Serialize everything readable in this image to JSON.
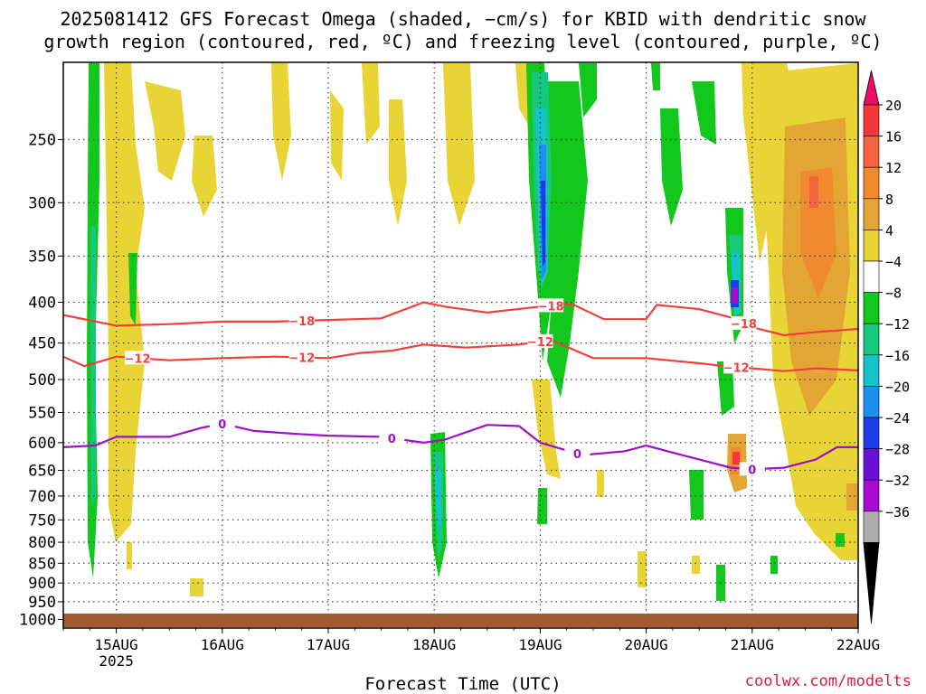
{
  "title_line1": "2025081412 GFS Forecast Omega (shaded, −cm/s) for KBID with dendritic snow",
  "title_line2": "growth region (contoured, red, ºC) and freezing level (contoured, purple, ºC)",
  "credit": "coolwx.com/modelts",
  "chart_data": {
    "type": "heatmap",
    "title": "2025081412 GFS Forecast Omega (shaded, −cm/s) for KBID with dendritic snow growth region (contoured, red, ºC) and freezing level (contoured, purple, ºC)",
    "xlabel": "Forecast Time (UTC)",
    "ylabel": "",
    "x_ticks": [
      "15AUG",
      "16AUG",
      "17AUG",
      "18AUG",
      "19AUG",
      "20AUG",
      "21AUG",
      "22AUG"
    ],
    "x_year_label": "2025",
    "xlim_days": [
      14.5,
      22.0
    ],
    "y_ticks": [
      250,
      300,
      350,
      400,
      450,
      500,
      550,
      600,
      650,
      700,
      750,
      800,
      850,
      900,
      950,
      1000
    ],
    "y_scale": "log-pressure",
    "ylim_hpa": [
      1025,
      200
    ],
    "grid": true,
    "colorbar": {
      "labels": [
        "20",
        "16",
        "12",
        "8",
        "4",
        "−4",
        "−8",
        "−12",
        "−16",
        "−20",
        "−24",
        "−28",
        "−32",
        "−36"
      ],
      "colors": [
        "#ee0a6b",
        "#f5393a",
        "#f4643f",
        "#f08a2e",
        "#e3a634",
        "#e8d434",
        "#ffffff",
        "#12c81c",
        "#16c87e",
        "#14c4c8",
        "#1e8ef0",
        "#1c3de8",
        "#6a10d6",
        "#a90ad2",
        "#aeaeae",
        "#000000"
      ]
    },
    "contours": [
      {
        "label": "−18",
        "color": "#f0403a",
        "pressure_level_hpa_by_day": [
          [
            14.5,
            415
          ],
          [
            15.0,
            428
          ],
          [
            15.5,
            426
          ],
          [
            16.0,
            423
          ],
          [
            16.5,
            423
          ],
          [
            17.0,
            421
          ],
          [
            17.5,
            419
          ],
          [
            17.9,
            400
          ],
          [
            18.1,
            405
          ],
          [
            18.5,
            412
          ],
          [
            19.0,
            405
          ],
          [
            19.3,
            402
          ],
          [
            19.6,
            420
          ],
          [
            20.0,
            420
          ],
          [
            20.1,
            403
          ],
          [
            20.5,
            408
          ],
          [
            20.8,
            418
          ],
          [
            21.0,
            430
          ],
          [
            21.3,
            440
          ],
          [
            21.6,
            436
          ],
          [
            22.0,
            432
          ]
        ]
      },
      {
        "label": "−12",
        "color": "#f0403a",
        "pressure_level_hpa_by_day": [
          [
            14.5,
            468
          ],
          [
            14.7,
            481
          ],
          [
            15.0,
            468
          ],
          [
            15.5,
            473
          ],
          [
            16.0,
            470
          ],
          [
            16.5,
            468
          ],
          [
            17.0,
            470
          ],
          [
            17.3,
            463
          ],
          [
            17.6,
            460
          ],
          [
            17.9,
            452
          ],
          [
            18.3,
            456
          ],
          [
            18.8,
            452
          ],
          [
            19.1,
            446
          ],
          [
            19.5,
            470
          ],
          [
            20.0,
            470
          ],
          [
            20.5,
            477
          ],
          [
            20.8,
            482
          ],
          [
            21.0,
            484
          ],
          [
            21.3,
            488
          ],
          [
            21.6,
            484
          ],
          [
            22.0,
            487
          ]
        ]
      },
      {
        "label": "0",
        "color": "#9b10c8",
        "pressure_level_hpa_by_day": [
          [
            14.5,
            608
          ],
          [
            14.8,
            605
          ],
          [
            15.0,
            590
          ],
          [
            15.5,
            590
          ],
          [
            15.8,
            575
          ],
          [
            16.0,
            568
          ],
          [
            16.3,
            580
          ],
          [
            16.7,
            585
          ],
          [
            17.0,
            588
          ],
          [
            17.5,
            590
          ],
          [
            17.9,
            600
          ],
          [
            18.1,
            595
          ],
          [
            18.5,
            570
          ],
          [
            18.8,
            572
          ],
          [
            19.0,
            600
          ],
          [
            19.4,
            622
          ],
          [
            19.8,
            615
          ],
          [
            20.0,
            605
          ],
          [
            20.3,
            620
          ],
          [
            20.8,
            645
          ],
          [
            21.0,
            648
          ],
          [
            21.3,
            645
          ],
          [
            21.6,
            630
          ],
          [
            21.8,
            608
          ],
          [
            22.0,
            608
          ]
        ]
      }
    ]
  }
}
